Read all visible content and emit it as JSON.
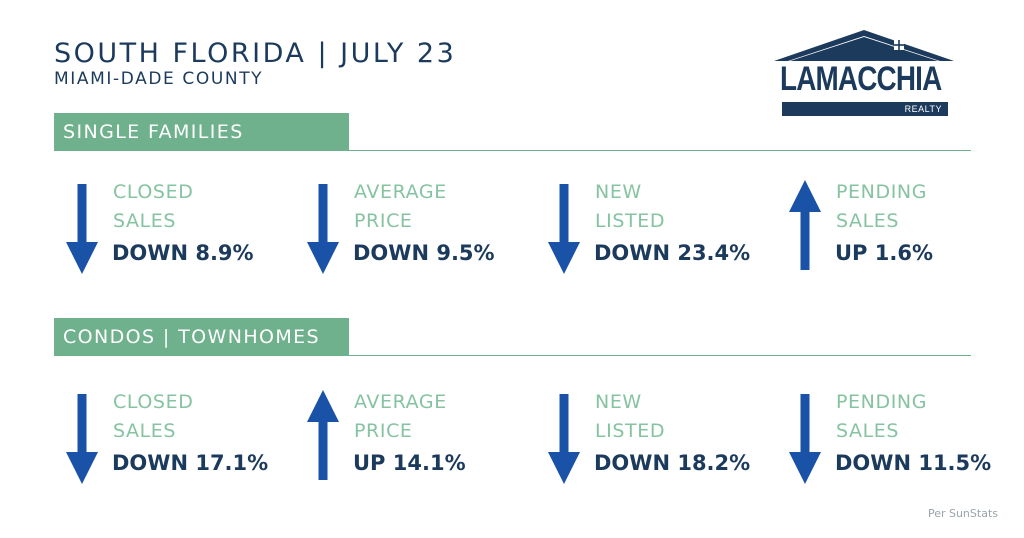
{
  "header": {
    "title": "SOUTH FLORIDA | JULY 23",
    "subtitle": "MIAMI-DADE COUNTY"
  },
  "logo": {
    "word": "LAMACCHIA",
    "tag": "REALTY"
  },
  "colors": {
    "navy": "#1b3a5c",
    "green": "#6fb08d",
    "light_green": "#86c3a1",
    "arrow_blue": "#1a52a8"
  },
  "sections": [
    {
      "title": "SINGLE FAMILIES",
      "stats": [
        {
          "label": "CLOSED\nSALES",
          "value": "DOWN 8.9%",
          "direction": "down"
        },
        {
          "label": "AVERAGE\nPRICE",
          "value": "DOWN 9.5%",
          "direction": "down"
        },
        {
          "label": "NEW\nLISTED",
          "value": "DOWN 23.4%",
          "direction": "down"
        },
        {
          "label": "PENDING\nSALES",
          "value": "UP 1.6%",
          "direction": "up"
        }
      ]
    },
    {
      "title": "CONDOS | TOWNHOMES",
      "stats": [
        {
          "label": "CLOSED\nSALES",
          "value": "DOWN 17.1%",
          "direction": "down"
        },
        {
          "label": "AVERAGE\nPRICE",
          "value": "UP 14.1%",
          "direction": "up"
        },
        {
          "label": "NEW\nLISTED",
          "value": "DOWN 18.2%",
          "direction": "down"
        },
        {
          "label": "PENDING\nSALES",
          "value": "DOWN 11.5%",
          "direction": "down"
        }
      ]
    }
  ],
  "footer": {
    "source": "Per SunStats"
  }
}
